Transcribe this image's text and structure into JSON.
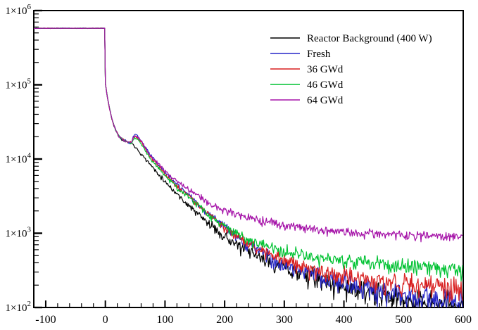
{
  "chart_data": {
    "type": "line",
    "title": "",
    "xlabel": "",
    "ylabel": "",
    "grid": false,
    "legend_position": "top-right",
    "x_axis": {
      "min": -120,
      "max": 600,
      "major_ticks": [
        -100,
        0,
        100,
        200,
        300,
        400,
        500,
        600
      ],
      "tick_labels": [
        "-100",
        "0",
        "100",
        "200",
        "300",
        "400",
        "500",
        "600"
      ],
      "minor_tick_step": 20
    },
    "y_axis": {
      "scale": "log",
      "min": 100,
      "max": 1000000,
      "decade_exponents": [
        2,
        3,
        4,
        5,
        6
      ],
      "tick_label_mantissa": "1×10",
      "tick_labels": [
        "1×10²",
        "1×10³",
        "1×10⁴",
        "1×10⁵",
        "1×10⁶"
      ]
    },
    "plateau": {
      "start_x": -120,
      "end_x": 0,
      "value": 578000,
      "log10": 5.762
    },
    "drop_x": 0,
    "common_decay_anchors_log10": [
      [
        0,
        5.02
      ],
      [
        3,
        4.85
      ],
      [
        6,
        4.72
      ],
      [
        10,
        4.57
      ],
      [
        14,
        4.46
      ],
      [
        18,
        4.38
      ],
      [
        22,
        4.32
      ],
      [
        26,
        4.285
      ],
      [
        30,
        4.258
      ],
      [
        34,
        4.24
      ],
      [
        38,
        4.228
      ],
      [
        44,
        4.22
      ]
    ],
    "noise": {
      "coef": 0.9,
      "cap": 0.12,
      "neg_asym": 1.35
    },
    "series": [
      {
        "name": "Reactor Background (400 W)",
        "color": "#000000",
        "seed": 11,
        "anchors_log10": [
          [
            44,
            4.22
          ],
          [
            45,
            4.21
          ],
          [
            47,
            4.19
          ],
          [
            50,
            4.17
          ],
          [
            60,
            4.07
          ],
          [
            75,
            3.93
          ],
          [
            100,
            3.7
          ],
          [
            125,
            3.49
          ],
          [
            150,
            3.3
          ],
          [
            175,
            3.12
          ],
          [
            200,
            2.96
          ],
          [
            225,
            2.82
          ],
          [
            250,
            2.71
          ],
          [
            275,
            2.62
          ],
          [
            300,
            2.54
          ],
          [
            325,
            2.47
          ],
          [
            350,
            2.4
          ],
          [
            375,
            2.34
          ],
          [
            400,
            2.28
          ],
          [
            425,
            2.23
          ],
          [
            450,
            2.18
          ],
          [
            475,
            2.145
          ],
          [
            500,
            2.11
          ],
          [
            525,
            2.08
          ],
          [
            550,
            2.05
          ],
          [
            575,
            2.025
          ],
          [
            600,
            2.0
          ]
        ]
      },
      {
        "name": "Fresh",
        "color": "#2626c8",
        "seed": 22,
        "anchors_log10": [
          [
            44,
            4.22
          ],
          [
            45,
            4.25
          ],
          [
            47,
            4.31
          ],
          [
            50,
            4.33
          ],
          [
            53,
            4.32
          ],
          [
            60,
            4.25
          ],
          [
            75,
            4.06
          ],
          [
            100,
            3.82
          ],
          [
            125,
            3.62
          ],
          [
            150,
            3.44
          ],
          [
            175,
            3.25
          ],
          [
            200,
            3.08
          ],
          [
            225,
            2.93
          ],
          [
            250,
            2.8
          ],
          [
            275,
            2.69
          ],
          [
            300,
            2.59
          ],
          [
            325,
            2.51
          ],
          [
            350,
            2.44
          ],
          [
            375,
            2.39
          ],
          [
            400,
            2.34
          ],
          [
            425,
            2.29
          ],
          [
            450,
            2.24
          ],
          [
            475,
            2.2
          ],
          [
            500,
            2.16
          ],
          [
            525,
            2.13
          ],
          [
            550,
            2.1
          ],
          [
            575,
            2.07
          ],
          [
            600,
            2.05
          ]
        ]
      },
      {
        "name": "36 GWd",
        "color": "#d81f1f",
        "seed": 33,
        "anchors_log10": [
          [
            44,
            4.22
          ],
          [
            45,
            4.24
          ],
          [
            47,
            4.29
          ],
          [
            50,
            4.3
          ],
          [
            53,
            4.29
          ],
          [
            60,
            4.23
          ],
          [
            75,
            4.03
          ],
          [
            100,
            3.8
          ],
          [
            125,
            3.6
          ],
          [
            150,
            3.43
          ],
          [
            175,
            3.24
          ],
          [
            200,
            3.08
          ],
          [
            225,
            2.94
          ],
          [
            250,
            2.82
          ],
          [
            275,
            2.72
          ],
          [
            300,
            2.64
          ],
          [
            325,
            2.57
          ],
          [
            350,
            2.51
          ],
          [
            375,
            2.47
          ],
          [
            400,
            2.43
          ],
          [
            425,
            2.4
          ],
          [
            450,
            2.37
          ],
          [
            475,
            2.345
          ],
          [
            500,
            2.325
          ],
          [
            525,
            2.31
          ],
          [
            550,
            2.295
          ],
          [
            575,
            2.285
          ],
          [
            600,
            2.28
          ]
        ]
      },
      {
        "name": "46 GWd",
        "color": "#00c232",
        "seed": 44,
        "anchors_log10": [
          [
            44,
            4.22
          ],
          [
            45,
            4.23
          ],
          [
            47,
            4.27
          ],
          [
            50,
            4.28
          ],
          [
            53,
            4.27
          ],
          [
            60,
            4.21
          ],
          [
            75,
            4.01
          ],
          [
            100,
            3.78
          ],
          [
            125,
            3.585
          ],
          [
            150,
            3.42
          ],
          [
            175,
            3.24
          ],
          [
            200,
            3.09
          ],
          [
            225,
            2.97
          ],
          [
            250,
            2.88
          ],
          [
            275,
            2.81
          ],
          [
            300,
            2.76
          ],
          [
            325,
            2.72
          ],
          [
            350,
            2.685
          ],
          [
            375,
            2.66
          ],
          [
            400,
            2.64
          ],
          [
            425,
            2.62
          ],
          [
            450,
            2.6
          ],
          [
            475,
            2.585
          ],
          [
            500,
            2.57
          ],
          [
            525,
            2.555
          ],
          [
            550,
            2.54
          ],
          [
            575,
            2.53
          ],
          [
            600,
            2.52
          ]
        ]
      },
      {
        "name": "64 GWd",
        "color": "#a512a8",
        "seed": 55,
        "anchors_log10": [
          [
            44,
            4.22
          ],
          [
            45,
            4.24
          ],
          [
            47,
            4.3
          ],
          [
            50,
            4.315
          ],
          [
            53,
            4.305
          ],
          [
            60,
            4.245
          ],
          [
            75,
            4.05
          ],
          [
            100,
            3.84
          ],
          [
            125,
            3.67
          ],
          [
            150,
            3.54
          ],
          [
            175,
            3.4
          ],
          [
            200,
            3.31
          ],
          [
            225,
            3.245
          ],
          [
            250,
            3.19
          ],
          [
            275,
            3.15
          ],
          [
            300,
            3.12
          ],
          [
            325,
            3.085
          ],
          [
            350,
            3.06
          ],
          [
            375,
            3.04
          ],
          [
            400,
            3.02
          ],
          [
            425,
            3.005
          ],
          [
            450,
            2.995
          ],
          [
            475,
            2.985
          ],
          [
            500,
            2.975
          ],
          [
            525,
            2.965
          ],
          [
            550,
            2.96
          ],
          [
            575,
            2.955
          ],
          [
            600,
            2.95
          ]
        ]
      }
    ]
  }
}
